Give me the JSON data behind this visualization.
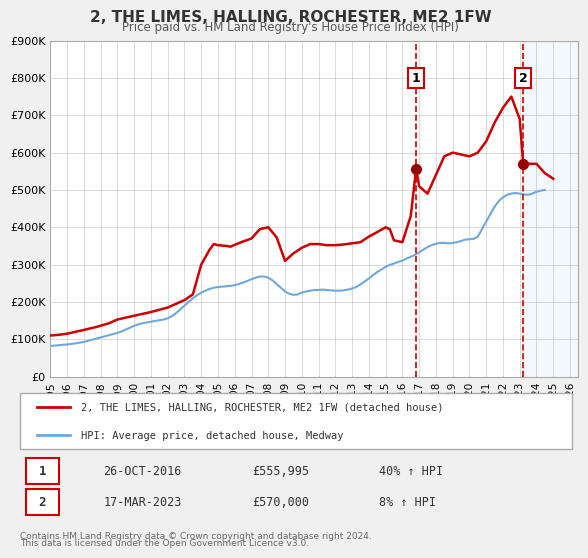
{
  "title": "2, THE LIMES, HALLING, ROCHESTER, ME2 1FW",
  "subtitle": "Price paid vs. HM Land Registry's House Price Index (HPI)",
  "xlabel": "",
  "ylabel": "",
  "ylim": [
    0,
    900000
  ],
  "xlim_start": 1995.0,
  "xlim_end": 2026.5,
  "yticks": [
    0,
    100000,
    200000,
    300000,
    400000,
    500000,
    600000,
    700000,
    800000,
    900000
  ],
  "ytick_labels": [
    "£0",
    "£100K",
    "£200K",
    "£300K",
    "£400K",
    "£500K",
    "£600K",
    "£700K",
    "£800K",
    "£900K"
  ],
  "xticks": [
    1995,
    1996,
    1997,
    1998,
    1999,
    2000,
    2001,
    2002,
    2003,
    2004,
    2005,
    2006,
    2007,
    2008,
    2009,
    2010,
    2011,
    2012,
    2013,
    2014,
    2015,
    2016,
    2017,
    2018,
    2019,
    2020,
    2021,
    2022,
    2023,
    2024,
    2025,
    2026
  ],
  "hpi_line_color": "#6fa8dc",
  "price_line_color": "#cc0000",
  "dashed_vline_color": "#cc0000",
  "marker_color": "#990000",
  "annotation_box_color": "#cc0000",
  "background_color": "#f0f0f0",
  "plot_bg_color": "#ffffff",
  "grid_color": "#cccccc",
  "sale1_x": 2016.82,
  "sale1_y": 555995,
  "sale1_label": "1",
  "sale2_x": 2023.21,
  "sale2_y": 570000,
  "sale2_label": "2",
  "legend_line1": "2, THE LIMES, HALLING, ROCHESTER, ME2 1FW (detached house)",
  "legend_line2": "HPI: Average price, detached house, Medway",
  "table_row1_num": "1",
  "table_row1_date": "26-OCT-2016",
  "table_row1_price": "£555,995",
  "table_row1_hpi": "40% ↑ HPI",
  "table_row2_num": "2",
  "table_row2_date": "17-MAR-2023",
  "table_row2_price": "£570,000",
  "table_row2_hpi": "8% ↑ HPI",
  "footer1": "Contains HM Land Registry data © Crown copyright and database right 2024.",
  "footer2": "This data is licensed under the Open Government Licence v3.0.",
  "hpi_data_x": [
    1995.0,
    1995.25,
    1995.5,
    1995.75,
    1996.0,
    1996.25,
    1996.5,
    1996.75,
    1997.0,
    1997.25,
    1997.5,
    1997.75,
    1998.0,
    1998.25,
    1998.5,
    1998.75,
    1999.0,
    1999.25,
    1999.5,
    1999.75,
    2000.0,
    2000.25,
    2000.5,
    2000.75,
    2001.0,
    2001.25,
    2001.5,
    2001.75,
    2002.0,
    2002.25,
    2002.5,
    2002.75,
    2003.0,
    2003.25,
    2003.5,
    2003.75,
    2004.0,
    2004.25,
    2004.5,
    2004.75,
    2005.0,
    2005.25,
    2005.5,
    2005.75,
    2006.0,
    2006.25,
    2006.5,
    2006.75,
    2007.0,
    2007.25,
    2007.5,
    2007.75,
    2008.0,
    2008.25,
    2008.5,
    2008.75,
    2009.0,
    2009.25,
    2009.5,
    2009.75,
    2010.0,
    2010.25,
    2010.5,
    2010.75,
    2011.0,
    2011.25,
    2011.5,
    2011.75,
    2012.0,
    2012.25,
    2012.5,
    2012.75,
    2013.0,
    2013.25,
    2013.5,
    2013.75,
    2014.0,
    2014.25,
    2014.5,
    2014.75,
    2015.0,
    2015.25,
    2015.5,
    2015.75,
    2016.0,
    2016.25,
    2016.5,
    2016.75,
    2017.0,
    2017.25,
    2017.5,
    2017.75,
    2018.0,
    2018.25,
    2018.5,
    2018.75,
    2019.0,
    2019.25,
    2019.5,
    2019.75,
    2020.0,
    2020.25,
    2020.5,
    2020.75,
    2021.0,
    2021.25,
    2021.5,
    2021.75,
    2022.0,
    2022.25,
    2022.5,
    2022.75,
    2023.0,
    2023.25,
    2023.5,
    2023.75,
    2024.0,
    2024.25,
    2024.5
  ],
  "hpi_data_y": [
    82000,
    83000,
    84000,
    85000,
    86000,
    87500,
    89000,
    91000,
    93000,
    96000,
    99000,
    102000,
    105000,
    108000,
    111000,
    114000,
    117000,
    121000,
    126000,
    131000,
    136000,
    140000,
    143000,
    145000,
    147000,
    149000,
    151000,
    153000,
    156000,
    162000,
    170000,
    180000,
    190000,
    200000,
    210000,
    218000,
    225000,
    230000,
    235000,
    238000,
    240000,
    241000,
    242000,
    243000,
    245000,
    248000,
    252000,
    256000,
    261000,
    265000,
    268000,
    268000,
    265000,
    258000,
    248000,
    238000,
    228000,
    222000,
    219000,
    220000,
    225000,
    228000,
    230000,
    232000,
    232000,
    233000,
    232000,
    231000,
    230000,
    230000,
    231000,
    233000,
    236000,
    240000,
    247000,
    255000,
    263000,
    272000,
    280000,
    287000,
    294000,
    299000,
    303000,
    307000,
    311000,
    316000,
    321000,
    326000,
    333000,
    340000,
    347000,
    352000,
    356000,
    358000,
    358000,
    357000,
    358000,
    360000,
    363000,
    367000,
    368000,
    369000,
    375000,
    395000,
    415000,
    435000,
    455000,
    470000,
    480000,
    487000,
    490000,
    492000,
    490000,
    488000,
    487000,
    490000,
    495000,
    498000,
    500000
  ],
  "price_data_x": [
    1995.0,
    1995.5,
    1996.0,
    1997.0,
    1997.75,
    1998.5,
    1999.0,
    2000.0,
    2001.0,
    2002.0,
    2003.0,
    2003.5,
    2004.0,
    2004.5,
    2004.75,
    2005.0,
    2005.5,
    2005.75,
    2006.0,
    2006.5,
    2007.0,
    2007.5,
    2008.0,
    2008.5,
    2009.0,
    2009.5,
    2010.0,
    2010.5,
    2011.0,
    2011.5,
    2012.0,
    2012.5,
    2013.0,
    2013.5,
    2014.0,
    2014.5,
    2015.0,
    2015.25,
    2015.5,
    2016.0,
    2016.5,
    2016.82,
    2017.0,
    2017.5,
    2018.0,
    2018.5,
    2019.0,
    2019.5,
    2020.0,
    2020.5,
    2021.0,
    2021.5,
    2022.0,
    2022.5,
    2023.0,
    2023.21,
    2023.5,
    2024.0,
    2024.5,
    2025.0
  ],
  "price_data_y": [
    110000,
    112000,
    115000,
    125000,
    133000,
    143000,
    153000,
    163000,
    173000,
    185000,
    205000,
    220000,
    300000,
    340000,
    355000,
    352000,
    350000,
    348000,
    353000,
    362000,
    370000,
    395000,
    400000,
    373000,
    310000,
    330000,
    345000,
    355000,
    355000,
    352000,
    352000,
    354000,
    357000,
    360000,
    375000,
    387000,
    400000,
    395000,
    365000,
    360000,
    430000,
    555995,
    510000,
    490000,
    540000,
    590000,
    600000,
    595000,
    590000,
    600000,
    630000,
    680000,
    720000,
    750000,
    690000,
    570000,
    570000,
    570000,
    545000,
    530000
  ]
}
